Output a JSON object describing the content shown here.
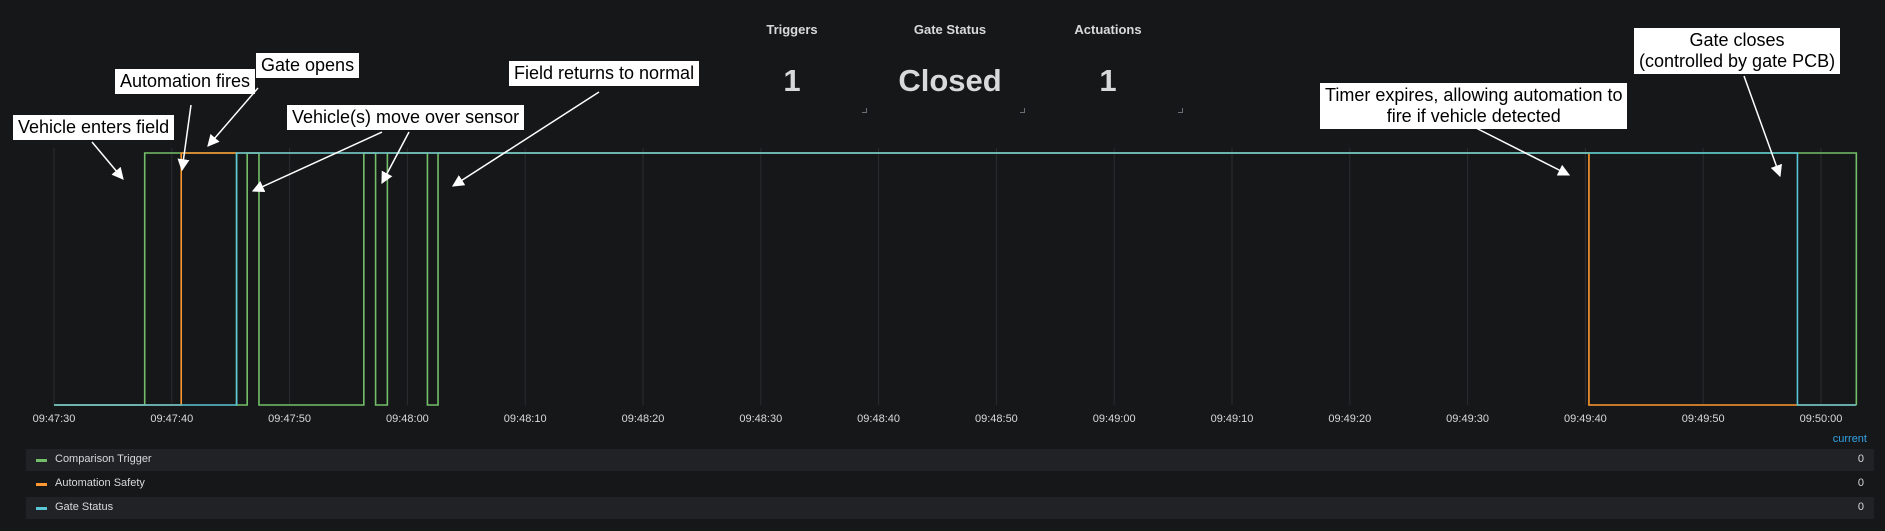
{
  "stats": [
    {
      "title": "Triggers",
      "value": "1"
    },
    {
      "title": "Gate Status",
      "value": "Closed"
    },
    {
      "title": "Actuations",
      "value": "1"
    }
  ],
  "annotations": [
    {
      "text": "Vehicle enters field"
    },
    {
      "text": "Automation fires"
    },
    {
      "text": "Gate opens"
    },
    {
      "text": "Vehicle(s) move over sensor"
    },
    {
      "text": "Field returns to normal"
    },
    {
      "text": "Timer expires, allowing automation to\nfire if vehicle detected"
    },
    {
      "text": "Gate closes\n(controlled by gate PCB)"
    }
  ],
  "legend": {
    "header": "current",
    "items": [
      {
        "label": "Comparison Trigger",
        "value": "0",
        "color": "#73bf69"
      },
      {
        "label": "Automation Safety",
        "value": "0",
        "color": "#ff9830"
      },
      {
        "label": "Gate Status",
        "value": "0",
        "color": "#5ac6d6"
      }
    ]
  },
  "chart_data": {
    "type": "line",
    "interpolation": "step",
    "x_tick_labels": [
      "09:47:30",
      "09:47:40",
      "09:47:50",
      "09:48:00",
      "09:48:10",
      "09:48:20",
      "09:48:30",
      "09:48:40",
      "09:48:50",
      "09:49:00",
      "09:49:10",
      "09:49:20",
      "09:49:30",
      "09:49:40",
      "09:49:50",
      "09:50:00"
    ],
    "xlim": [
      "09:47:30",
      "09:50:03"
    ],
    "ylim": [
      0,
      1
    ],
    "grid": true,
    "legend_position": "bottom",
    "series": [
      {
        "name": "Comparison Trigger",
        "color": "#73bf69",
        "segments": [
          [
            "09:47:37.7",
            "09:47:45.5"
          ],
          [
            "09:47:46.4",
            "09:47:47.4"
          ],
          [
            "09:47:56.3",
            "09:47:57.3"
          ],
          [
            "09:47:58.3",
            "09:48:01.7"
          ],
          [
            "09:48:02.6",
            "09:50:03"
          ]
        ]
      },
      {
        "name": "Automation Safety",
        "color": "#ff9830",
        "segments": [
          [
            "09:47:40.8",
            "09:49:40.3"
          ]
        ]
      },
      {
        "name": "Gate Status",
        "color": "#5ac6d6",
        "segments": [
          [
            "09:47:45.5",
            "09:49:58.0"
          ]
        ]
      }
    ]
  }
}
